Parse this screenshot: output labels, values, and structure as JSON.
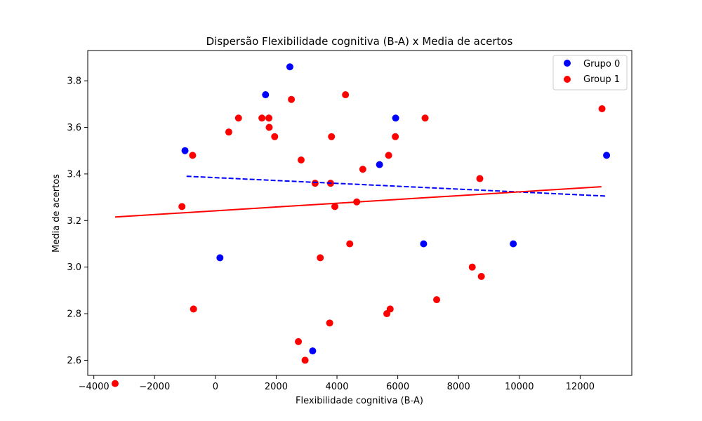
{
  "chart_data": {
    "type": "scatter",
    "title": "Dispersão Flexibilidade cognitiva (B-A) x Media de acertos",
    "xlabel": "Flexibilidade cognitiva (B-A)",
    "ylabel": "Media de acertos",
    "xlim": [
      -4200,
      13700
    ],
    "ylim": [
      2.535,
      3.93
    ],
    "x_ticks": [
      -4000,
      -2000,
      0,
      2000,
      4000,
      6000,
      8000,
      10000,
      12000
    ],
    "x_tick_labels": [
      "−4000",
      "−2000",
      "0",
      "2000",
      "4000",
      "6000",
      "8000",
      "10000",
      "12000"
    ],
    "y_ticks": [
      2.6,
      2.8,
      3.0,
      3.2,
      3.4,
      3.6,
      3.8
    ],
    "y_tick_labels": [
      "2.6",
      "2.8",
      "3.0",
      "3.2",
      "3.4",
      "3.6",
      "3.8"
    ],
    "grid": false,
    "legend_position": "top-right",
    "series": [
      {
        "name": "Grupo 0",
        "color": "#0000ff",
        "points": [
          [
            -1000,
            3.5
          ],
          [
            1650,
            3.74
          ],
          [
            2450,
            3.86
          ],
          [
            150,
            3.04
          ],
          [
            3200,
            2.64
          ],
          [
            5400,
            3.44
          ],
          [
            5930,
            3.64
          ],
          [
            6850,
            3.1
          ],
          [
            9800,
            3.1
          ],
          [
            12870,
            3.48
          ]
        ],
        "trend": {
          "style": "dashed",
          "x": [
            -950,
            12850
          ],
          "y": [
            3.39,
            3.305
          ]
        }
      },
      {
        "name": "Group 1",
        "color": "#ff0000",
        "points": [
          [
            -3300,
            2.5
          ],
          [
            -1100,
            3.26
          ],
          [
            -750,
            3.48
          ],
          [
            -720,
            2.82
          ],
          [
            440,
            3.58
          ],
          [
            760,
            3.64
          ],
          [
            1530,
            3.64
          ],
          [
            1760,
            3.64
          ],
          [
            1770,
            3.6
          ],
          [
            1950,
            3.56
          ],
          [
            2500,
            3.72
          ],
          [
            2730,
            2.68
          ],
          [
            2820,
            3.46
          ],
          [
            2950,
            2.6
          ],
          [
            3280,
            3.36
          ],
          [
            3450,
            3.04
          ],
          [
            3760,
            2.76
          ],
          [
            3790,
            3.36
          ],
          [
            3820,
            3.56
          ],
          [
            3930,
            3.26
          ],
          [
            4280,
            3.74
          ],
          [
            4420,
            3.1
          ],
          [
            4650,
            3.28
          ],
          [
            4850,
            3.42
          ],
          [
            5640,
            2.8
          ],
          [
            5700,
            3.48
          ],
          [
            5750,
            2.82
          ],
          [
            5920,
            3.56
          ],
          [
            6900,
            3.64
          ],
          [
            7280,
            2.86
          ],
          [
            8450,
            3.0
          ],
          [
            8700,
            3.38
          ],
          [
            8750,
            2.96
          ],
          [
            12720,
            3.68
          ]
        ],
        "trend": {
          "style": "solid-dashed",
          "x": [
            -3300,
            12700
          ],
          "y": [
            3.215,
            3.345
          ]
        }
      }
    ]
  }
}
